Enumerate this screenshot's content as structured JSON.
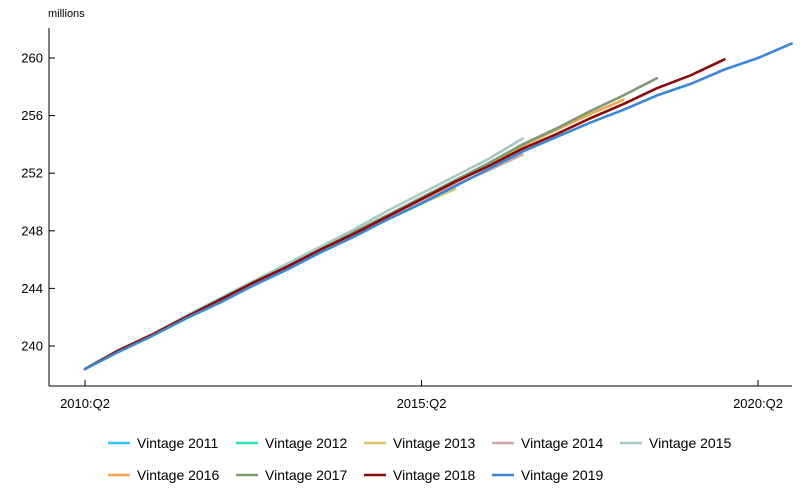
{
  "chart_data": {
    "type": "line",
    "title": "",
    "xlabel": "",
    "ylabel": "millions",
    "ylim": [
      237.6,
      262.2
    ],
    "x_ticks": [
      {
        "label": "2010:Q2",
        "q": 0
      },
      {
        "label": "2015:Q2",
        "q": 20
      },
      {
        "label": "2020:Q2",
        "q": 40
      }
    ],
    "y_ticks": [
      240,
      244,
      248,
      252,
      256,
      260
    ],
    "grid": false,
    "legend_position": "bottom",
    "series": [
      {
        "name": "Vintage 2011",
        "color": "#35c8f3",
        "values": [
          238.4,
          239.7,
          240.8,
          242.0,
          243.1,
          244.2
        ]
      },
      {
        "name": "Vintage 2012",
        "color": "#2fe0b8",
        "values": [
          238.4,
          239.7,
          240.8,
          242.0,
          243.1,
          244.3,
          245.4,
          246.5
        ]
      },
      {
        "name": "Vintage 2013",
        "color": "#d9c66d",
        "values": [
          238.4,
          239.7,
          240.8,
          242.0,
          243.1,
          244.3,
          245.4,
          246.6,
          247.7,
          248.8,
          249.9,
          250.9
        ]
      },
      {
        "name": "Vintage 2014",
        "color": "#c9a8aa",
        "values": [
          238.4,
          239.7,
          240.8,
          242.0,
          243.2,
          244.4,
          245.5,
          246.7,
          247.8,
          249.0,
          250.1,
          251.2,
          252.2,
          253.3
        ]
      },
      {
        "name": "Vintage 2015",
        "color": "#a6c8c6",
        "values": [
          238.4,
          239.7,
          240.8,
          242.1,
          243.3,
          244.5,
          245.7,
          246.9,
          248.1,
          249.4,
          250.6,
          251.8,
          253.0,
          254.4
        ]
      },
      {
        "name": "Vintage 2016",
        "color": "#f2a54a",
        "values": [
          238.4,
          239.7,
          240.8,
          242.0,
          243.2,
          244.4,
          245.5,
          246.7,
          247.9,
          249.1,
          250.3,
          251.5,
          252.7,
          253.9,
          255.0,
          256.1,
          257.1
        ]
      },
      {
        "name": "Vintage 2017",
        "color": "#7f9a73",
        "values": [
          238.4,
          239.7,
          240.8,
          242.0,
          243.2,
          244.4,
          245.5,
          246.7,
          247.9,
          249.1,
          250.3,
          251.5,
          252.7,
          254.0,
          255.1,
          256.3,
          257.4,
          258.6
        ]
      },
      {
        "name": "Vintage 2018",
        "color": "#8b0a0a",
        "values": [
          238.4,
          239.7,
          240.8,
          242.0,
          243.2,
          244.4,
          245.5,
          246.7,
          247.8,
          249.0,
          250.2,
          251.4,
          252.5,
          253.7,
          254.7,
          255.8,
          256.8,
          257.9,
          258.8,
          259.9
        ]
      },
      {
        "name": "Vintage 2019",
        "color": "#3d86d6",
        "values": [
          238.4,
          239.6,
          240.7,
          241.9,
          243.0,
          244.2,
          245.3,
          246.5,
          247.6,
          248.8,
          249.9,
          251.1,
          252.3,
          253.5,
          254.5,
          255.5,
          256.4,
          257.4,
          258.2,
          259.2,
          260.0,
          261.0
        ]
      }
    ]
  }
}
